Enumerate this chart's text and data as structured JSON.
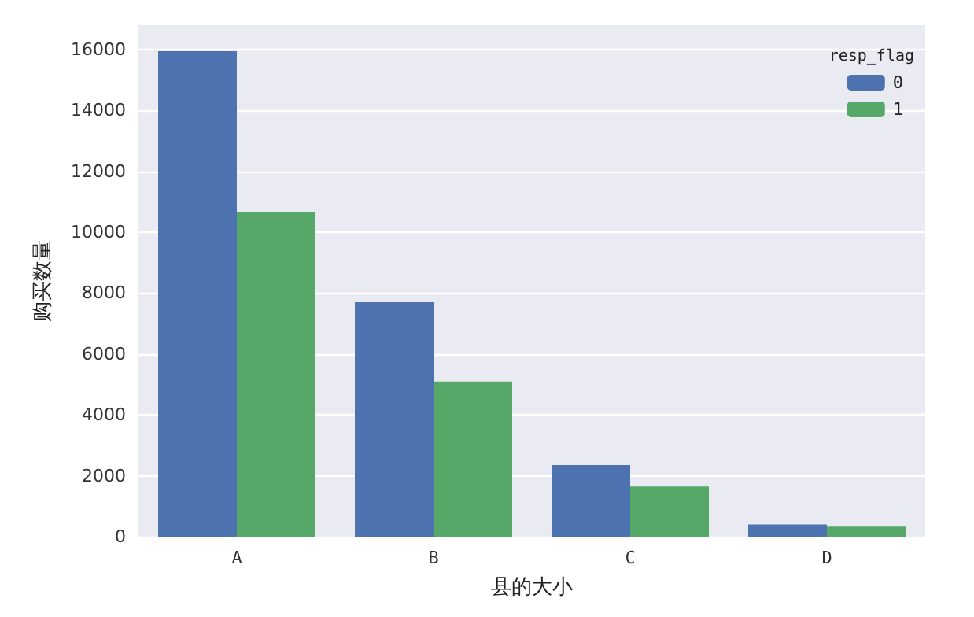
{
  "chart_data": {
    "type": "bar",
    "xlabel": "县的大小",
    "ylabel": "购买数量",
    "legend_title": "resp_flag",
    "categories": [
      "A",
      "B",
      "C",
      "D"
    ],
    "series": [
      {
        "name": "0",
        "color": "#4c72b0",
        "values": [
          15950,
          7700,
          2350,
          400
        ]
      },
      {
        "name": "1",
        "color": "#55a868",
        "values": [
          10650,
          5100,
          1650,
          330
        ]
      }
    ],
    "ylim": [
      0,
      16800
    ],
    "yticks": [
      0,
      2000,
      4000,
      6000,
      8000,
      10000,
      12000,
      14000,
      16000
    ],
    "grid": "y",
    "legend": "top right"
  }
}
